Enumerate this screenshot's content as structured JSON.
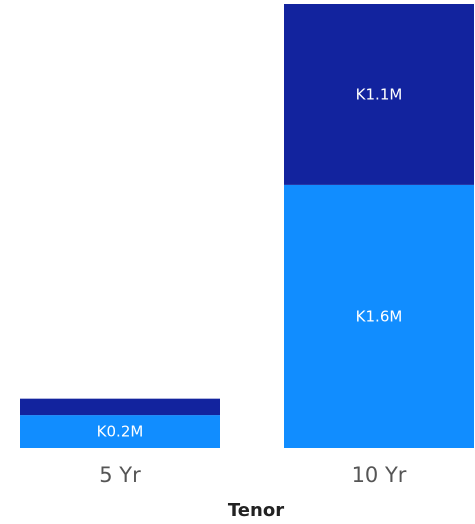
{
  "chart_data": {
    "type": "bar",
    "stacked": true,
    "categories": [
      "5 Yr",
      "10 Yr"
    ],
    "xlabel": "Tenor",
    "ylabel": "",
    "ylim": [
      0,
      2.7
    ],
    "grid": false,
    "series": [
      {
        "color": "#118dff",
        "values": [
          0.2,
          1.6
        ],
        "labels": [
          "K0.2M",
          "K1.6M"
        ]
      },
      {
        "color": "#12239e",
        "values": [
          0.1,
          1.1
        ],
        "labels": [
          "",
          "K1.1M"
        ]
      }
    ]
  }
}
